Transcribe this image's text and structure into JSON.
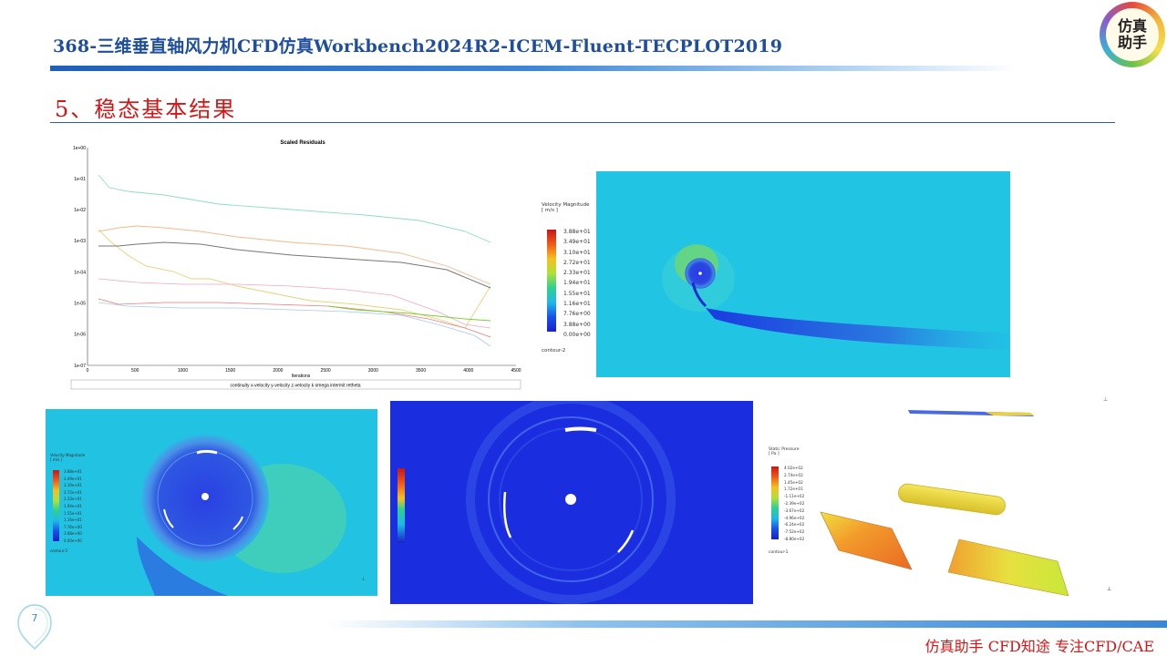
{
  "header": {
    "title": "368-三维垂直轴风力机CFD仿真Workbench2024R2-ICEM-Fluent-TECPLOT2019",
    "logo_line1": "仿真",
    "logo_line2": "助手"
  },
  "section": {
    "title": "5、稳态基本结果"
  },
  "footer": {
    "text": "仿真助手 CFD知途 专注CFD/CAE",
    "page_number": "7"
  },
  "residuals": {
    "title": "Scaled Residuals",
    "xlabel": "Iterations",
    "x_ticks": [
      "0",
      "500",
      "1000",
      "1500",
      "2000",
      "2500",
      "3000",
      "3500",
      "4000",
      "4500"
    ],
    "y_ticks": [
      "1e+00",
      "1e-01",
      "1e-02",
      "1e-03",
      "1e-04",
      "1e-05",
      "1e-06",
      "1e-07"
    ],
    "legend": "continuity  x-velocity  y-velocity  z-velocity  k  omega  intermit  retheta"
  },
  "contour_top": {
    "legend_title": "Velocity Magnitude",
    "legend_unit": "[ m/s ]",
    "values": [
      "3.88e+01",
      "3.49e+01",
      "3.10e+01",
      "2.72e+01",
      "2.33e+01",
      "1.94e+01",
      "1.55e+01",
      "1.16e+01",
      "7.76e+00",
      "3.88e+00",
      "0.00e+00"
    ],
    "name": "contour-2"
  },
  "contour_left": {
    "legend_title": "Velocity Magnitude",
    "legend_unit": "[ m/s ]",
    "values": [
      "3.88e+01",
      "3.49e+01",
      "3.10e+01",
      "2.72e+01",
      "2.33e+01",
      "1.94e+01",
      "1.55e+01",
      "1.16e+01",
      "7.76e+00",
      "3.88e+00",
      "0.00e+00"
    ],
    "name": "contour-2"
  },
  "contour_pressure": {
    "legend_title": "Static Pressure",
    "legend_unit": "[ Pa ]",
    "values": [
      "4.02e+02",
      "2.74e+02",
      "1.45e+02",
      "1.72e+01",
      "-1.11e+02",
      "-2.39e+02",
      "-3.67e+02",
      "-4.96e+02",
      "-6.24e+02",
      "-7.52e+02",
      "-8.80e+02"
    ],
    "name": "contour-1"
  },
  "colors": {
    "title_blue": "#1f4e9c",
    "section_red": "#d41616",
    "field_cyan": "#22c0e6",
    "field_deep_blue": "#1a2ee0"
  }
}
